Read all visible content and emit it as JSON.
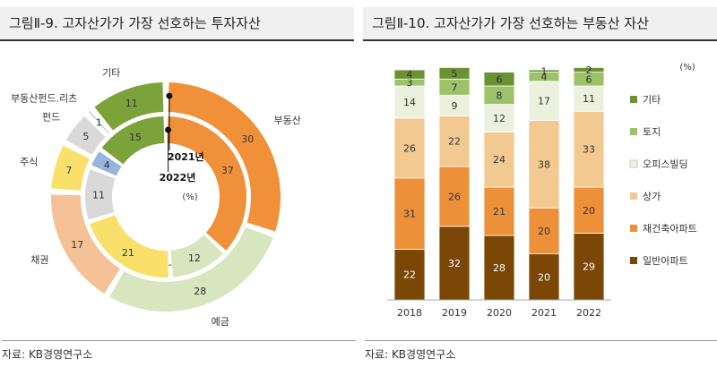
{
  "left": {
    "title": "그림Ⅱ-9. 고자산가가 가장 선호하는 투자자산",
    "source": "자료: KB경영연구소",
    "unit": "(%)",
    "inner_label": "2021년",
    "outer_label": "2022년"
  },
  "right": {
    "title": "그림Ⅱ-10. 고자산가가 가장 선호하는 부동산 자산",
    "source": "자료: KB경영연구소",
    "unit": "(%)"
  },
  "chart_data": [
    {
      "type": "pie",
      "subtype": "double-donut",
      "title": "고자산가가 가장 선호하는 투자자산",
      "unit": "%",
      "rings": [
        {
          "name": "2022년",
          "position": "outer",
          "slices": [
            {
              "label": "부동산",
              "value": 30,
              "color": "#f0913a"
            },
            {
              "label": "예금",
              "value": 28,
              "color": "#d8e6c0"
            },
            {
              "label": "채권",
              "value": 17,
              "color": "#f5c196"
            },
            {
              "label": "주식",
              "value": 7,
              "color": "#f9e06a"
            },
            {
              "label": "펀드",
              "value": 5,
              "color": "#d9d9d9"
            },
            {
              "label": "부동산펀드.리츠",
              "value": 1,
              "color": "#98b4dc"
            },
            {
              "label": "기타",
              "value": 11,
              "color": "#7ca33a"
            }
          ]
        },
        {
          "name": "2021년",
          "position": "inner",
          "slices": [
            {
              "label": "부동산",
              "value": 37,
              "color": "#f0913a"
            },
            {
              "label": "예금",
              "value": 12,
              "color": "#d8e6c0"
            },
            {
              "label": "채권",
              "value": 0,
              "display": "-",
              "color": "#f5c196"
            },
            {
              "label": "주식",
              "value": 21,
              "color": "#f9e06a"
            },
            {
              "label": "펀드",
              "value": 11,
              "color": "#d9d9d9"
            },
            {
              "label": "부동산펀드.리츠",
              "value": 4,
              "color": "#98b4dc"
            },
            {
              "label": "기타",
              "value": 15,
              "color": "#7ca33a"
            }
          ]
        }
      ]
    },
    {
      "type": "bar",
      "subtype": "stacked",
      "title": "고자산가가 가장 선호하는 부동산 자산",
      "unit": "%",
      "categories": [
        "2018",
        "2019",
        "2020",
        "2021",
        "2022"
      ],
      "series": [
        {
          "name": "일반아파트",
          "values": [
            22,
            32,
            28,
            20,
            29
          ],
          "color": "#7a4706",
          "text_color": "#ffffff"
        },
        {
          "name": "재건축아파트",
          "values": [
            31,
            26,
            21,
            20,
            20
          ],
          "color": "#ec913a",
          "text_color": "#333333"
        },
        {
          "name": "상가",
          "values": [
            26,
            22,
            24,
            38,
            33
          ],
          "color": "#f3c992",
          "text_color": "#333333"
        },
        {
          "name": "오피스빌딩",
          "values": [
            14,
            9,
            12,
            17,
            11
          ],
          "color": "#ebf1dc",
          "text_color": "#333333"
        },
        {
          "name": "토지",
          "values": [
            3,
            7,
            8,
            4,
            6
          ],
          "color": "#9cc26a",
          "text_color": "#333333"
        },
        {
          "name": "기타",
          "values": [
            4,
            5,
            6,
            1,
            2
          ],
          "color": "#6b9232",
          "text_color": "#333333"
        }
      ],
      "legend_position": "right",
      "ylim": [
        0,
        100
      ]
    }
  ]
}
